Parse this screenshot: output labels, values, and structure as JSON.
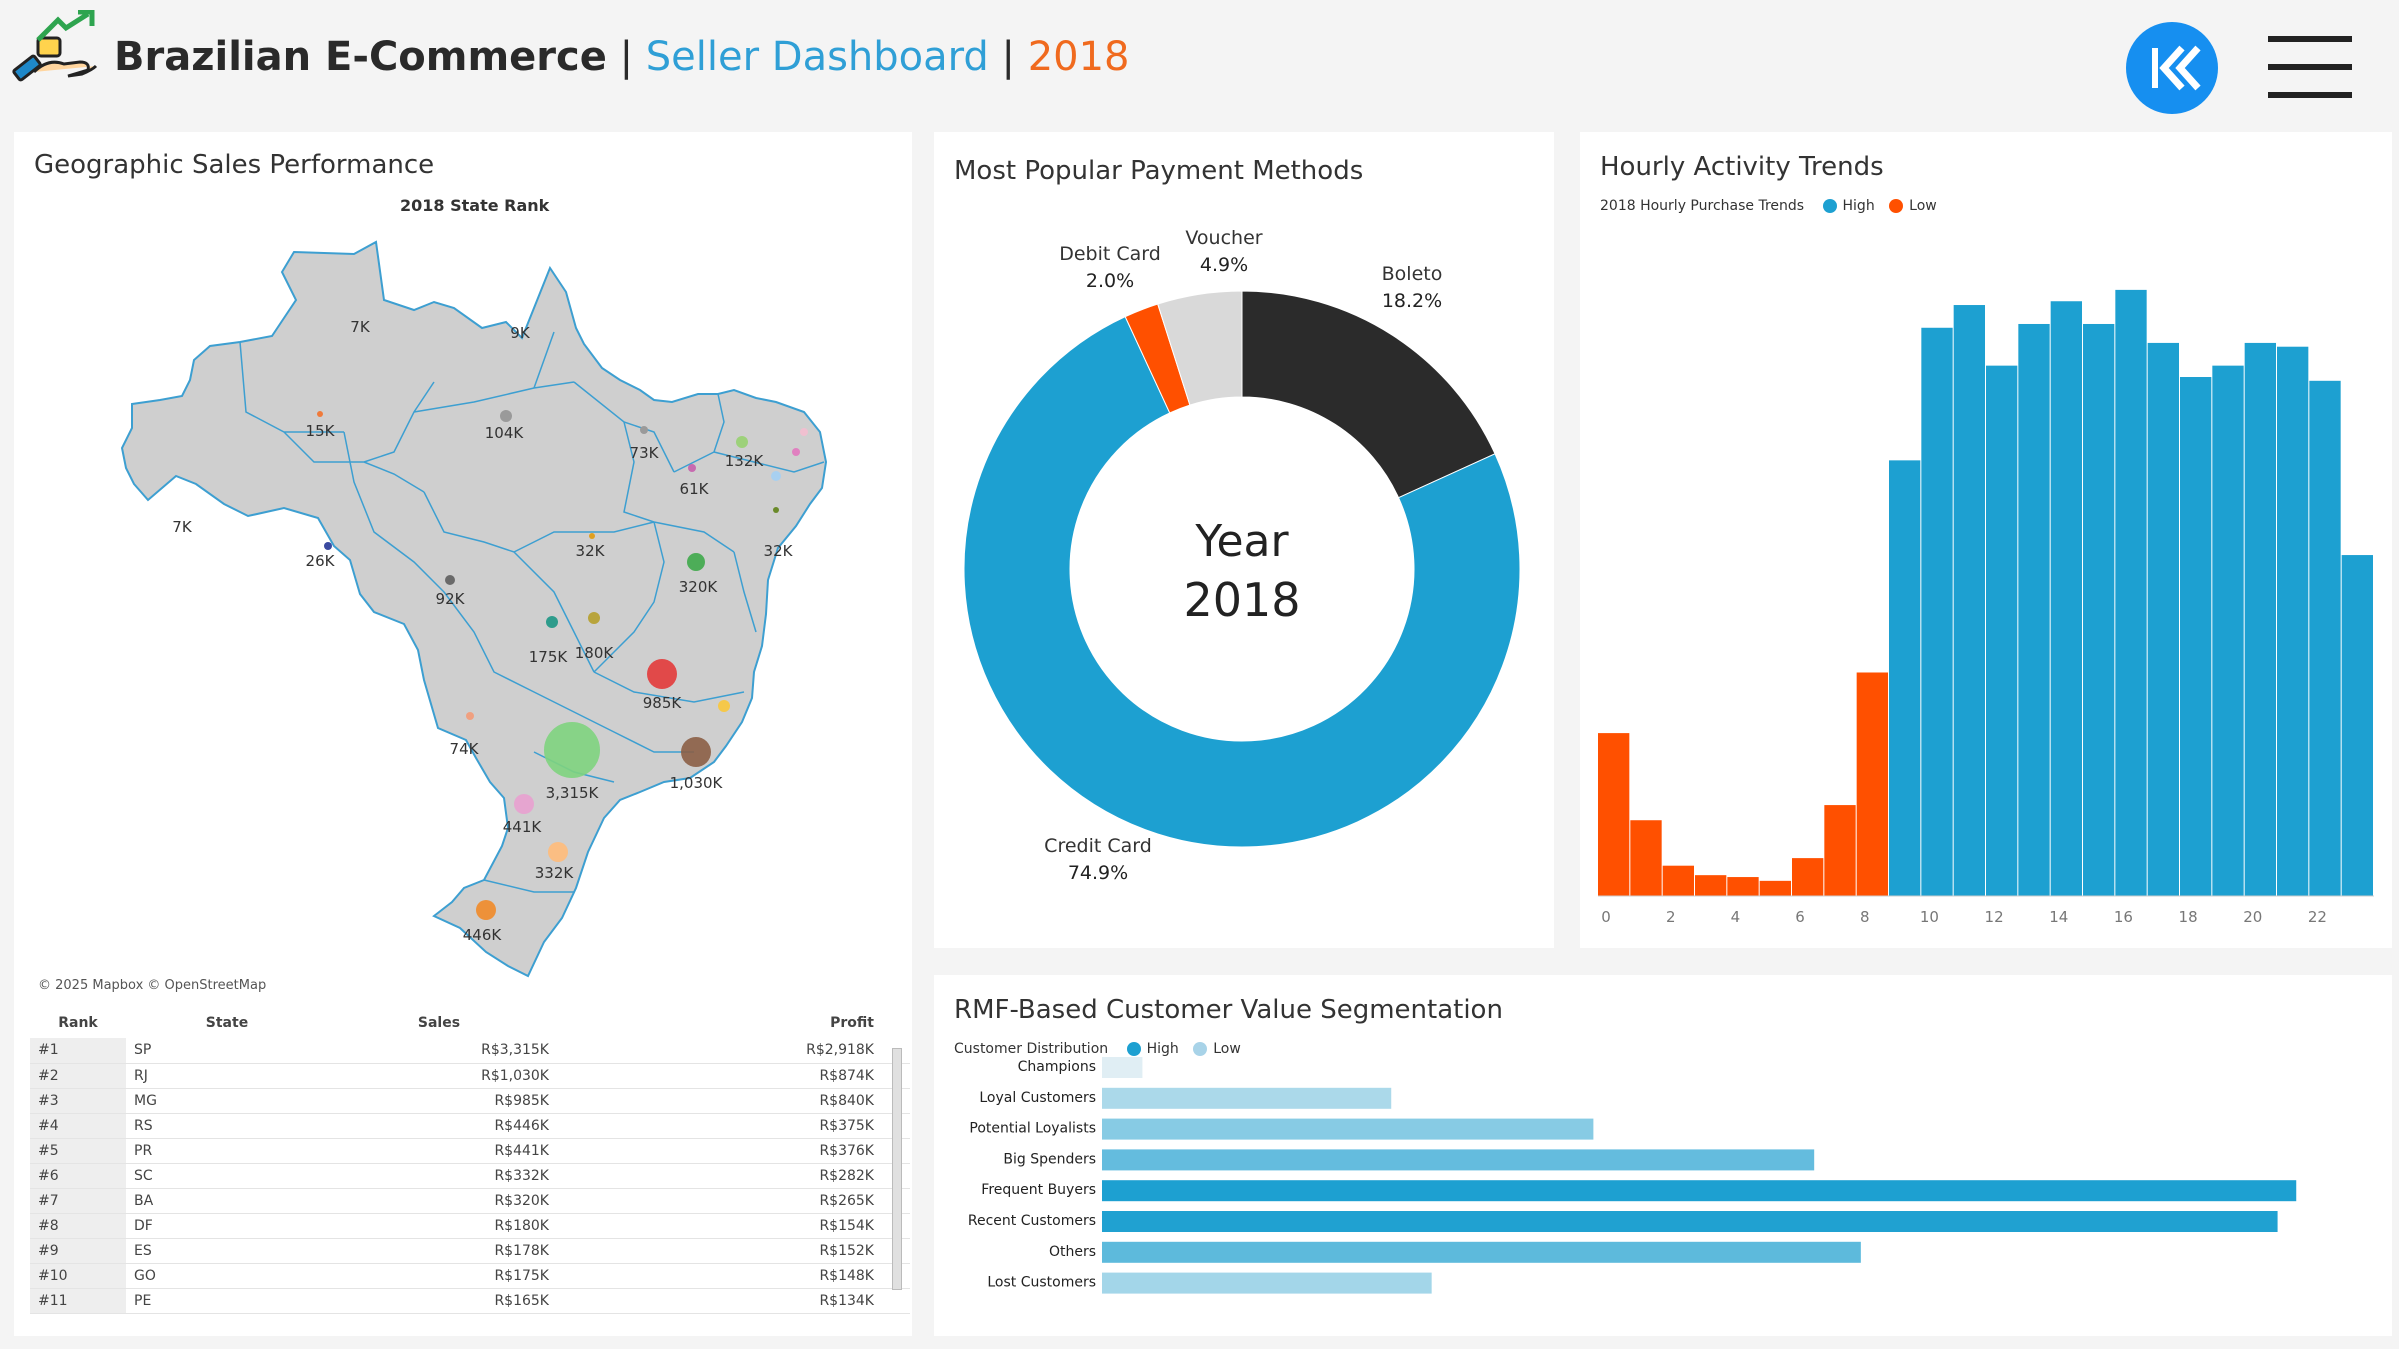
{
  "header": {
    "app_title": "Brazilian E-Commerce",
    "separator": "|",
    "subtitle": "Seller Dashboard",
    "year": "2018",
    "logo_icon": "hand-money-growth-icon",
    "back_icon": "double-chevron-left-icon",
    "menu_icon": "hamburger-menu-icon"
  },
  "colors": {
    "blue": "#1da0d1",
    "orange": "#ff5000",
    "dark": "#2b2b2b",
    "grey": "#d9d9d9"
  },
  "map_panel": {
    "title": "Geographic Sales Performance",
    "subtitle": "2018 State Rank",
    "attribution": "© 2025 Mapbox © OpenStreetMap",
    "labels": [
      "7K",
      "9K",
      "15K",
      "104K",
      "73K",
      "132K",
      "61K",
      "7K",
      "26K",
      "32K",
      "32K",
      "320K",
      "92K",
      "175K",
      "180K",
      "985K",
      "74K",
      "3,315K",
      "1,030K",
      "441K",
      "332K",
      "446K"
    ]
  },
  "state_table": {
    "headers": [
      "Rank",
      "State",
      "Sales",
      "Profit"
    ],
    "rows": [
      [
        "#1",
        "SP",
        "R$3,315K",
        "R$2,918K"
      ],
      [
        "#2",
        "RJ",
        "R$1,030K",
        "R$874K"
      ],
      [
        "#3",
        "MG",
        "R$985K",
        "R$840K"
      ],
      [
        "#4",
        "RS",
        "R$446K",
        "R$375K"
      ],
      [
        "#5",
        "PR",
        "R$441K",
        "R$376K"
      ],
      [
        "#6",
        "SC",
        "R$332K",
        "R$282K"
      ],
      [
        "#7",
        "BA",
        "R$320K",
        "R$265K"
      ],
      [
        "#8",
        "DF",
        "R$180K",
        "R$154K"
      ],
      [
        "#9",
        "ES",
        "R$178K",
        "R$152K"
      ],
      [
        "#10",
        "GO",
        "R$175K",
        "R$148K"
      ],
      [
        "#11",
        "PE",
        "R$165K",
        "R$134K"
      ]
    ]
  },
  "payment_panel": {
    "title": "Most Popular Payment Methods",
    "center_line1": "Year",
    "center_line2": "2018"
  },
  "hourly_panel": {
    "title": "Hourly Activity Trends",
    "legend_title": "2018 Hourly Purchase Trends",
    "legend_high": "High",
    "legend_low": "Low"
  },
  "segment_panel": {
    "title": "RMF-Based Customer Value Segmentation",
    "legend_title": "Customer Distribution",
    "legend_high": "High",
    "legend_low": "Low"
  },
  "chart_data": [
    {
      "type": "pie",
      "title": "Most Popular Payment Methods",
      "labels": [
        "Boleto",
        "Credit Card",
        "Debit Card",
        "Voucher"
      ],
      "values": [
        18.2,
        74.9,
        2.0,
        4.9
      ],
      "display_values": [
        "18.2%",
        "74.9%",
        "2.0%",
        "4.9%"
      ],
      "colors": [
        "#2b2b2b",
        "#1da0d1",
        "#ff5000",
        "#d9d9d9"
      ]
    },
    {
      "type": "bar",
      "title": "Hourly Activity Trends",
      "x": [
        0,
        1,
        2,
        3,
        4,
        5,
        6,
        7,
        8,
        9,
        10,
        11,
        12,
        13,
        14,
        15,
        16,
        17,
        18,
        19,
        20,
        21,
        22,
        23
      ],
      "values": [
        4.3,
        2.0,
        0.8,
        0.55,
        0.5,
        0.4,
        1.0,
        2.4,
        5.9,
        11.5,
        15.0,
        15.6,
        14.0,
        15.1,
        15.7,
        15.1,
        16.0,
        14.6,
        13.7,
        14.0,
        14.6,
        14.5,
        13.6,
        9.0
      ],
      "groups": [
        "Low",
        "Low",
        "Low",
        "Low",
        "Low",
        "Low",
        "Low",
        "Low",
        "Low",
        "High",
        "High",
        "High",
        "High",
        "High",
        "High",
        "High",
        "High",
        "High",
        "High",
        "High",
        "High",
        "High",
        "High",
        "High"
      ],
      "xticks": [
        "0",
        "2",
        "4",
        "6",
        "8",
        "10",
        "12",
        "14",
        "16",
        "18",
        "20",
        "22"
      ],
      "ylim": [
        0,
        17
      ],
      "series_colors": {
        "High": "#1da0d1",
        "Low": "#ff5000"
      }
    },
    {
      "type": "bar",
      "orientation": "horizontal",
      "title": "RMF-Based Customer Value Segmentation",
      "categories": [
        "Champions",
        "Loyal Customers",
        "Potential Loyalists",
        "Big Spenders",
        "Frequent Buyers",
        "Recent Customers",
        "Others",
        "Lost Customers"
      ],
      "values": [
        1.3,
        9.3,
        15.8,
        22.9,
        38.4,
        37.8,
        24.4,
        10.6
      ],
      "xlim": [
        0,
        40
      ]
    }
  ]
}
